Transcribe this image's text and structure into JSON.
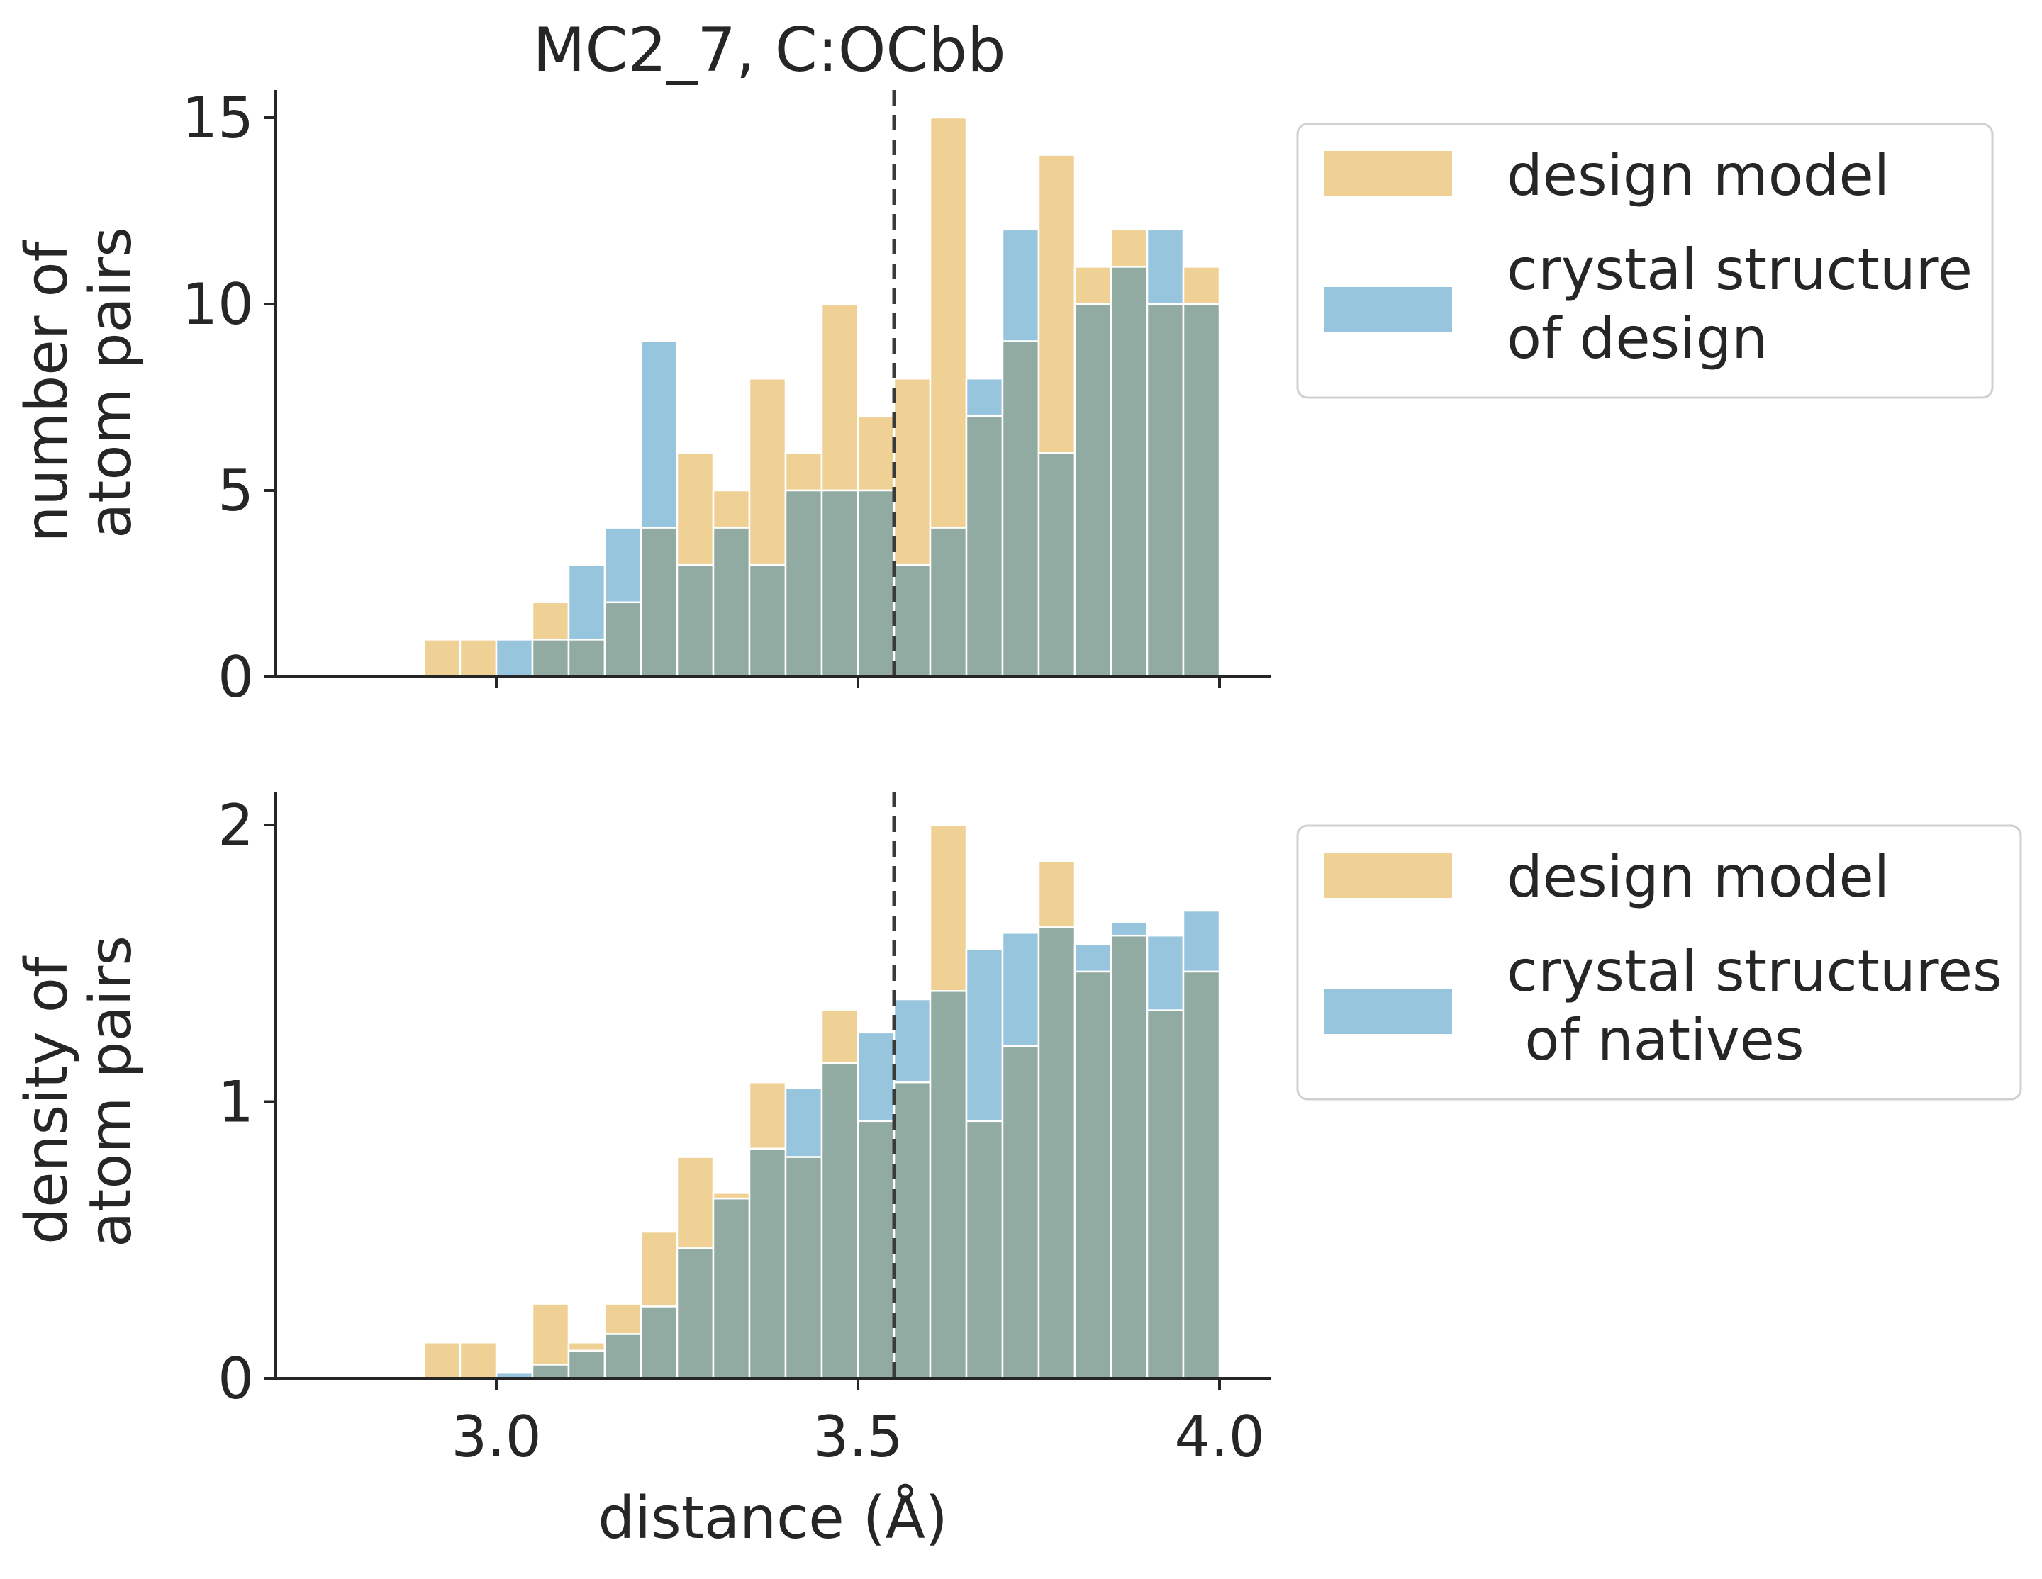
{
  "title": "MC2_7, C:OCbb",
  "threshold": 3.55,
  "colors": {
    "design": "#f0d195",
    "crystal": "#97c5de",
    "overlap": "#92aba2",
    "threshold": "#3a3a3a"
  },
  "chart_data": [
    {
      "type": "bar",
      "subtype": "overlaid-histogram",
      "title": "MC2_7, C:OCbb",
      "xlabel": "",
      "ylabel": "number of\natom pairs",
      "xlim": [
        2.68,
        4.065
      ],
      "ylim": [
        0,
        15.8
      ],
      "xticks": [
        3.0,
        3.5,
        4.0
      ],
      "xtick_labels_visible": false,
      "yticks": [
        0,
        5,
        10,
        15
      ],
      "ytick_labels": [
        "0",
        "5",
        "10",
        "15"
      ],
      "bin_width": 0.05,
      "bin_starts": [
        2.9,
        2.95,
        3.0,
        3.05,
        3.1,
        3.15,
        3.2,
        3.25,
        3.3,
        3.35,
        3.4,
        3.45,
        3.5,
        3.55,
        3.6,
        3.65,
        3.7,
        3.75,
        3.8,
        3.85,
        3.9,
        3.95
      ],
      "series": [
        {
          "name": "design model",
          "color": "#f0d195",
          "values": [
            1,
            1,
            0,
            2,
            1,
            2,
            4,
            6,
            5,
            8,
            6,
            10,
            7,
            8,
            15,
            7,
            9,
            14,
            11,
            12,
            10,
            11
          ]
        },
        {
          "name": "crystal structure\nof design",
          "color": "#97c5de",
          "values": [
            0,
            0,
            1,
            1,
            3,
            4,
            9,
            3,
            4,
            3,
            5,
            5,
            5,
            3,
            4,
            8,
            12,
            6,
            10,
            11,
            12,
            10
          ]
        }
      ],
      "legend": {
        "placement": "outside-right",
        "entries": [
          [
            "design model"
          ],
          [
            "crystal structure",
            "of design"
          ]
        ]
      }
    },
    {
      "type": "bar",
      "subtype": "overlaid-histogram",
      "xlabel": "distance (Å)",
      "ylabel": "density of\natom pairs",
      "xlim": [
        2.68,
        4.065
      ],
      "ylim": [
        0,
        2.1
      ],
      "xticks": [
        3.0,
        3.5,
        4.0
      ],
      "xtick_labels": [
        "3.0",
        "3.5",
        "4.0"
      ],
      "yticks": [
        0,
        1,
        2
      ],
      "ytick_labels": [
        "0",
        "1",
        "2"
      ],
      "bin_width": 0.05,
      "bin_starts": [
        2.9,
        2.95,
        3.0,
        3.05,
        3.1,
        3.15,
        3.2,
        3.25,
        3.3,
        3.35,
        3.4,
        3.45,
        3.5,
        3.55,
        3.6,
        3.65,
        3.7,
        3.75,
        3.8,
        3.85,
        3.9,
        3.95
      ],
      "series": [
        {
          "name": "design model",
          "color": "#f0d195",
          "values": [
            0.13,
            0.13,
            0,
            0.27,
            0.13,
            0.27,
            0.53,
            0.8,
            0.67,
            1.07,
            0.8,
            1.33,
            0.93,
            1.07,
            2.0,
            0.93,
            1.2,
            1.87,
            1.47,
            1.6,
            1.33,
            1.47
          ]
        },
        {
          "name": "crystal structures\n of natives",
          "color": "#97c5de",
          "values": [
            0,
            0,
            0.02,
            0.05,
            0.1,
            0.16,
            0.26,
            0.47,
            0.65,
            0.83,
            1.05,
            1.14,
            1.25,
            1.37,
            1.4,
            1.55,
            1.61,
            1.63,
            1.57,
            1.65,
            1.6,
            1.69
          ]
        }
      ],
      "legend": {
        "placement": "outside-right",
        "entries": [
          [
            "design model"
          ],
          [
            "crystal structures",
            " of natives"
          ]
        ]
      }
    }
  ]
}
